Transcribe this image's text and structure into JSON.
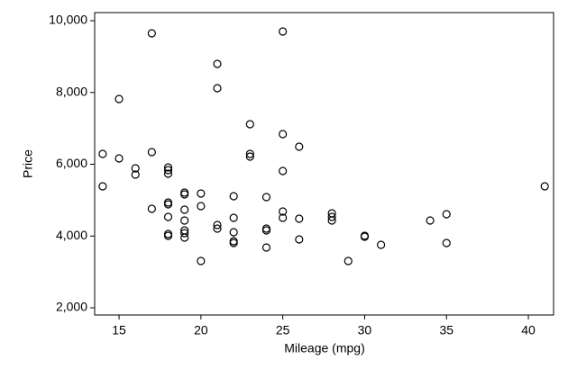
{
  "chart_data": {
    "type": "scatter",
    "xlabel": "Mileage (mpg)",
    "ylabel": "Price",
    "color": "#000000",
    "xlim": [
      13.51,
      41.54
    ],
    "ylim": [
      1799,
      10226
    ],
    "xticks": [
      15,
      20,
      25,
      30,
      35,
      40
    ],
    "yticks": [
      {
        "value": 2000,
        "label": "2,000"
      },
      {
        "value": 4000,
        "label": "4,000"
      },
      {
        "value": 6000,
        "label": "6,000"
      },
      {
        "value": 8000,
        "label": "8,000"
      },
      {
        "value": 10000,
        "label": "10,000"
      }
    ],
    "grid": false,
    "x": [
      14,
      14,
      15,
      15,
      16,
      16,
      17,
      17,
      17,
      18,
      18,
      18,
      18,
      18,
      18,
      18,
      18,
      19,
      19,
      19,
      19,
      19,
      19,
      19,
      20,
      20,
      20,
      21,
      21,
      21,
      21,
      22,
      22,
      22,
      22,
      22,
      23,
      23,
      23,
      24,
      24,
      24,
      24,
      25,
      25,
      25,
      25,
      25,
      26,
      26,
      26,
      28,
      28,
      28,
      29,
      30,
      30,
      31,
      34,
      35,
      35,
      41
    ],
    "values": [
      6288,
      5386,
      7818,
      6163,
      5887,
      5712,
      9649,
      6338,
      4759,
      5912,
      5837,
      5737,
      4934,
      4884,
      4533,
      4057,
      4006,
      5210,
      5160,
      4734,
      4433,
      4157,
      4082,
      3956,
      5185,
      4834,
      3304,
      8796,
      8119,
      4307,
      4207,
      5110,
      4508,
      4107,
      3856,
      3806,
      7116,
      6288,
      6213,
      5085,
      4207,
      4157,
      3680,
      9699,
      6840,
      5812,
      4683,
      4508,
      6489,
      4483,
      3906,
      4633,
      4533,
      4433,
      3304,
      4006,
      3981,
      3756,
      4433,
      4608,
      3806,
      5386
    ]
  }
}
